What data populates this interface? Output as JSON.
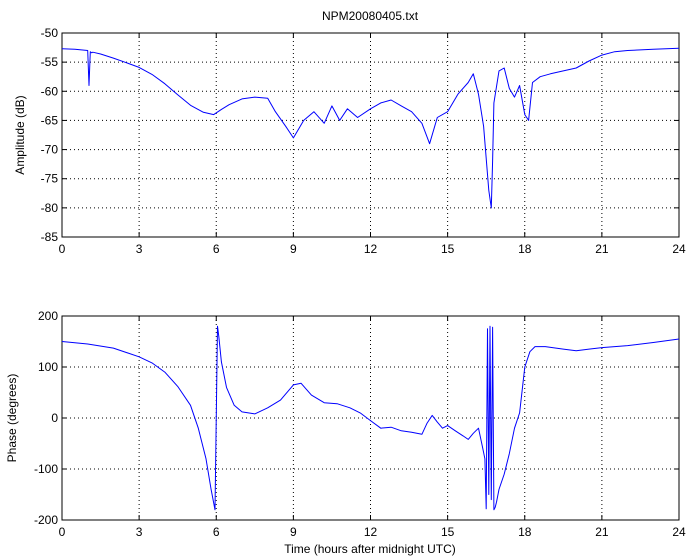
{
  "chart_data": [
    {
      "type": "line",
      "title": "NPM20080405.txt",
      "xlabel": "",
      "ylabel": "Amplitude (dB)",
      "xlim": [
        0,
        24
      ],
      "ylim": [
        -85,
        -50
      ],
      "xticks": [
        0,
        3,
        6,
        9,
        12,
        15,
        18,
        21,
        24
      ],
      "yticks": [
        -85,
        -80,
        -75,
        -70,
        -65,
        -60,
        -55,
        -50
      ],
      "grid": true,
      "color": "#0000ff",
      "series": [
        {
          "x": [
            0,
            0.5,
            1.0,
            1.05,
            1.1,
            1.15,
            1.2,
            1.5,
            2.0,
            2.5,
            3.0,
            3.5,
            4.0,
            4.5,
            5.0,
            5.5,
            5.9,
            6.2,
            6.5,
            7.0,
            7.5,
            8.0,
            8.3,
            8.7,
            9.0,
            9.4,
            9.8,
            10.2,
            10.5,
            10.8,
            11.1,
            11.5,
            12.0,
            12.4,
            12.8,
            13.2,
            13.6,
            14.0,
            14.3,
            14.6,
            15.0,
            15.4,
            15.8,
            16.0,
            16.2,
            16.4,
            16.6,
            16.7,
            16.75,
            16.8,
            17.0,
            17.2,
            17.4,
            17.6,
            17.8,
            18.0,
            18.15,
            18.3,
            18.6,
            19.0,
            19.5,
            20.0,
            20.5,
            21.0,
            21.5,
            22.0,
            22.5,
            23.0,
            23.5,
            24.0
          ],
          "y": [
            -52.7,
            -52.8,
            -53.0,
            -59.0,
            -53.2,
            -53.4,
            -53.3,
            -53.6,
            -54.3,
            -55.1,
            -55.9,
            -57.1,
            -58.7,
            -60.6,
            -62.4,
            -63.6,
            -64.0,
            -63.1,
            -62.3,
            -61.3,
            -61.0,
            -61.2,
            -63.5,
            -66.0,
            -68.0,
            -65.0,
            -63.5,
            -65.5,
            -62.5,
            -65.0,
            -63.0,
            -64.5,
            -63.0,
            -62.0,
            -61.5,
            -62.5,
            -63.5,
            -65.5,
            -69.0,
            -64.5,
            -63.5,
            -60.5,
            -58.5,
            -57.0,
            -60.5,
            -66.0,
            -77.0,
            -80.0,
            -72.0,
            -62.0,
            -56.5,
            -56.0,
            -59.5,
            -61.0,
            -59.0,
            -64.0,
            -65.0,
            -58.5,
            -57.5,
            -57.0,
            -56.5,
            -56.0,
            -54.8,
            -53.8,
            -53.2,
            -53.0,
            -52.9,
            -52.8,
            -52.7,
            -52.6
          ]
        }
      ]
    },
    {
      "type": "line",
      "title": "",
      "xlabel": "Time (hours after midnight UTC)",
      "ylabel": "Phase (degrees)",
      "xlim": [
        0,
        24
      ],
      "ylim": [
        -200,
        200
      ],
      "xticks": [
        0,
        3,
        6,
        9,
        12,
        15,
        18,
        21,
        24
      ],
      "yticks": [
        -200,
        -100,
        0,
        100,
        200
      ],
      "grid": true,
      "color": "#0000ff",
      "series": [
        {
          "x": [
            0,
            1.0,
            2.0,
            3.0,
            3.5,
            4.0,
            4.5,
            5.0,
            5.3,
            5.6,
            5.8,
            5.95,
            6.05,
            6.1,
            6.2,
            6.4,
            6.7,
            7.0,
            7.5,
            8.0,
            8.5,
            9.0,
            9.3,
            9.7,
            10.2,
            10.7,
            11.2,
            11.6,
            12.0,
            12.4,
            12.8,
            13.2,
            13.6,
            14.0,
            14.2,
            14.4,
            14.6,
            14.8,
            15.0,
            15.3,
            15.6,
            15.8,
            16.0,
            16.2,
            16.35,
            16.45,
            16.5,
            16.55,
            16.6,
            16.65,
            16.7,
            16.75,
            16.8,
            16.85,
            16.9,
            17.0,
            17.2,
            17.4,
            17.6,
            17.8,
            18.0,
            18.2,
            18.4,
            18.8,
            19.5,
            20.0,
            20.5,
            21.0,
            22.0,
            23.0,
            24.0
          ],
          "y": [
            150,
            145,
            137,
            120,
            108,
            90,
            62,
            25,
            -20,
            -80,
            -140,
            -180,
            180,
            160,
            110,
            60,
            25,
            12,
            8,
            20,
            35,
            65,
            68,
            45,
            30,
            28,
            20,
            10,
            -5,
            -20,
            -18,
            -25,
            -28,
            -32,
            -10,
            5,
            -8,
            -20,
            -15,
            -25,
            -35,
            -42,
            -30,
            -20,
            -55,
            -80,
            -178,
            175,
            -150,
            180,
            -160,
            178,
            -180,
            -175,
            -165,
            -140,
            -110,
            -70,
            -20,
            10,
            100,
            130,
            140,
            140,
            135,
            132,
            135,
            138,
            142,
            148,
            155
          ]
        }
      ]
    }
  ]
}
